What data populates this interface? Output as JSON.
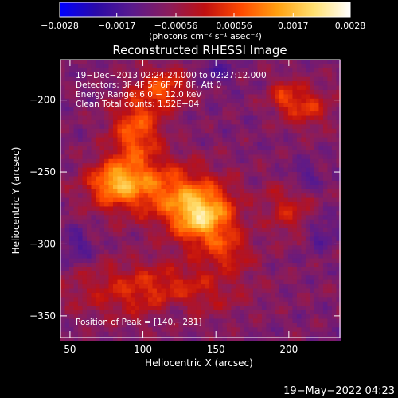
{
  "colorbar": {
    "ticks": [
      {
        "value": -0.0028,
        "label": "−0.0028"
      },
      {
        "value": -0.0017,
        "label": "−0.0017"
      },
      {
        "value": -0.00056,
        "label": "−0.00056"
      },
      {
        "value": 0.00056,
        "label": "0.00056"
      },
      {
        "value": 0.0017,
        "label": "0.0017"
      },
      {
        "value": 0.0028,
        "label": "0.0028"
      }
    ],
    "range": [
      -0.0028,
      0.0028
    ],
    "units_label": "(photons cm⁻² s⁻¹ asec⁻²)",
    "colors": [
      "#0000ff",
      "#2a0aa8",
      "#5a1a8c",
      "#8a1c5c",
      "#c01010",
      "#ff4a00",
      "#ffa010",
      "#ffe070",
      "#ffffff"
    ]
  },
  "chart_data": {
    "type": "heatmap",
    "title": "Reconstructed RHESSI Image",
    "xlabel": "Heliocentric X (arcsec)",
    "ylabel": "Heliocentric Y (arcsec)",
    "xlim": [
      43.5,
      235
    ],
    "ylim": [
      -365,
      -172
    ],
    "xticks": [
      {
        "value": 50,
        "label": "50"
      },
      {
        "value": 100,
        "label": "100"
      },
      {
        "value": 150,
        "label": "150"
      },
      {
        "value": 200,
        "label": "200"
      }
    ],
    "yticks": [
      {
        "value": -200,
        "label": "−200"
      },
      {
        "value": -250,
        "label": "−250"
      },
      {
        "value": -300,
        "label": "−300"
      },
      {
        "value": -350,
        "label": "−350"
      }
    ],
    "peak": {
      "x": 140,
      "y": -281,
      "label": "Position of Peak = [140,−281]"
    },
    "info_lines": [
      "19−Dec−2013 02:24:24.000 to 02:27:12.000",
      "Detectors: 3F 4F 5F 6F 7F 8F, Att 0",
      "Energy Range: 6.0 − 12.0 keV",
      "Clean      Total counts: 1.52E+04"
    ],
    "sources": [
      {
        "x": 140,
        "y": -281,
        "sx": 15,
        "sy": 13,
        "amp": 0.0027
      },
      {
        "x": 110,
        "y": -262,
        "sx": 28,
        "sy": 14,
        "amp": 0.0016
      },
      {
        "x": 95,
        "y": -222,
        "sx": 12,
        "sy": 18,
        "amp": 0.0017
      },
      {
        "x": 80,
        "y": -257,
        "sx": 12,
        "sy": 10,
        "amp": 0.0016
      },
      {
        "x": 115,
        "y": -192,
        "sx": 12,
        "sy": 10,
        "amp": 0.0014
      },
      {
        "x": 108,
        "y": -332,
        "sx": 40,
        "sy": 14,
        "amp": 0.0012
      },
      {
        "x": 212,
        "y": -205,
        "sx": 12,
        "sy": 10,
        "amp": 0.0012
      },
      {
        "x": 196,
        "y": -196,
        "sx": 8,
        "sy": 8,
        "amp": 0.0009
      },
      {
        "x": 200,
        "y": -275,
        "sx": 12,
        "sy": 14,
        "amp": 0.0009
      },
      {
        "x": 158,
        "y": -305,
        "sx": 12,
        "sy": 10,
        "amp": 0.001
      },
      {
        "x": 222,
        "y": -292,
        "sx": 8,
        "sy": 8,
        "amp": -0.0006
      },
      {
        "x": 55,
        "y": -302,
        "sx": 8,
        "sy": 8,
        "amp": -0.0007
      },
      {
        "x": 210,
        "y": -255,
        "sx": 8,
        "sy": 8,
        "amp": -0.0007
      },
      {
        "x": 120,
        "y": -345,
        "sx": 8,
        "sy": 7,
        "amp": -0.0005
      },
      {
        "x": 150,
        "y": -180,
        "sx": 8,
        "sy": 8,
        "amp": -0.0006
      }
    ],
    "background": -0.0009,
    "grid": false
  },
  "footer": {
    "timestamp": "19−May−2022 04:23"
  }
}
